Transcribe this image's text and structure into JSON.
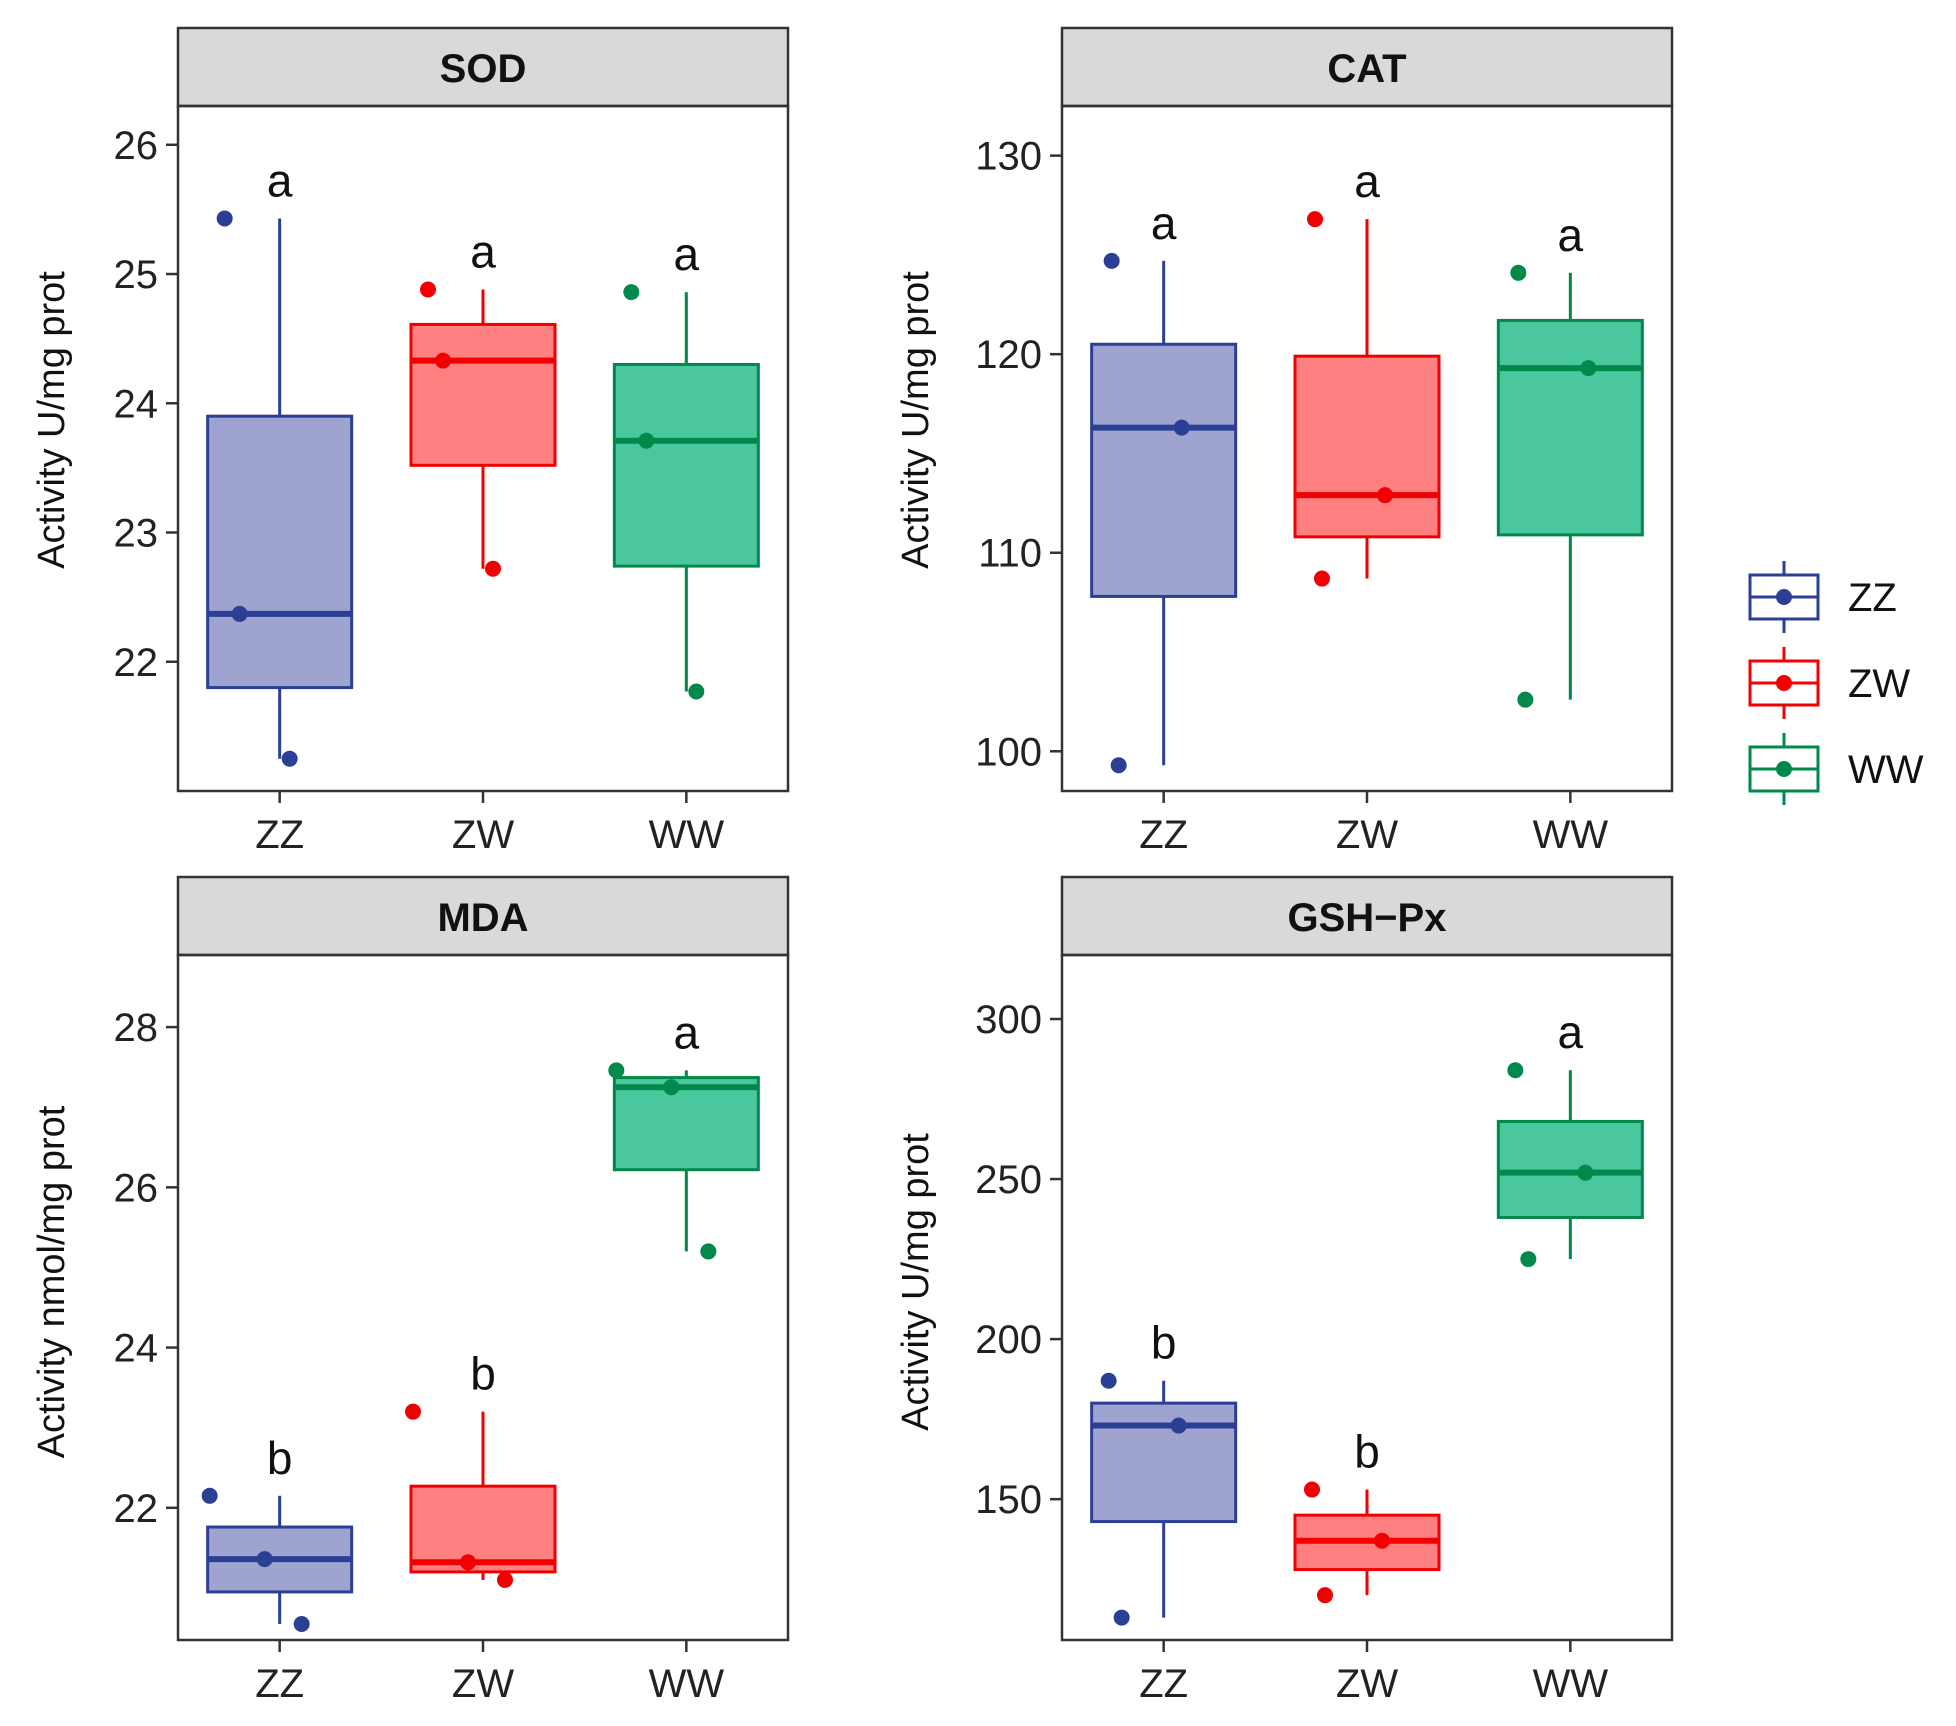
{
  "groups": [
    {
      "name": "ZZ",
      "line_color": "#2b3f94",
      "fill_color": "#9fa3cf",
      "point_color": "#2b3f94"
    },
    {
      "name": "ZW",
      "line_color": "#f00000",
      "fill_color": "#ff8080",
      "point_color": "#f00000"
    },
    {
      "name": "WW",
      "line_color": "#00894a",
      "fill_color": "#4bc7a0",
      "point_color": "#00894a"
    }
  ],
  "legend": {
    "position": "right",
    "entries": [
      "ZZ",
      "ZW",
      "WW"
    ]
  },
  "chart_data": [
    {
      "type": "boxplot",
      "title": "SOD",
      "ylabel": "Activity U/mg prot",
      "categories": [
        "ZZ",
        "ZW",
        "WW"
      ],
      "ylim": [
        21.0,
        26.3
      ],
      "yticks": [
        22,
        23,
        24,
        25,
        26
      ],
      "boxes": [
        {
          "group": "ZZ",
          "q1": 21.8,
          "median": 22.37,
          "q3": 23.9,
          "whisker_low": 21.25,
          "whisker_high": 25.43,
          "letter": "a",
          "points": [
            25.43,
            22.37,
            21.25
          ]
        },
        {
          "group": "ZW",
          "q1": 23.52,
          "median": 24.33,
          "q3": 24.61,
          "whisker_low": 22.72,
          "whisker_high": 24.88,
          "letter": "a",
          "points": [
            24.88,
            24.33,
            22.72
          ]
        },
        {
          "group": "WW",
          "q1": 22.74,
          "median": 23.71,
          "q3": 24.3,
          "whisker_low": 21.77,
          "whisker_high": 24.86,
          "letter": "a",
          "points": [
            24.86,
            23.71,
            21.77
          ]
        }
      ]
    },
    {
      "type": "boxplot",
      "title": "CAT",
      "ylabel": "Activity U/mg prot",
      "categories": [
        "ZZ",
        "ZW",
        "WW"
      ],
      "ylim": [
        98.0,
        132.5
      ],
      "yticks": [
        100,
        110,
        120,
        130
      ],
      "boxes": [
        {
          "group": "ZZ",
          "q1": 107.8,
          "median": 116.3,
          "q3": 120.5,
          "whisker_low": 99.3,
          "whisker_high": 124.7,
          "letter": "a",
          "points": [
            124.7,
            116.3,
            99.3
          ]
        },
        {
          "group": "ZW",
          "q1": 110.8,
          "median": 112.9,
          "q3": 119.9,
          "whisker_low": 108.7,
          "whisker_high": 126.8,
          "letter": "a",
          "points": [
            126.8,
            112.9,
            108.7
          ]
        },
        {
          "group": "WW",
          "q1": 110.9,
          "median": 119.3,
          "q3": 121.7,
          "whisker_low": 102.6,
          "whisker_high": 124.1,
          "letter": "a",
          "points": [
            124.1,
            119.3,
            102.6
          ]
        }
      ]
    },
    {
      "type": "boxplot",
      "title": "MDA",
      "ylabel": "Activity nmol/mg prot",
      "categories": [
        "ZZ",
        "ZW",
        "WW"
      ],
      "ylim": [
        20.35,
        28.9
      ],
      "yticks": [
        22,
        24,
        26,
        28
      ],
      "boxes": [
        {
          "group": "ZZ",
          "q1": 20.95,
          "median": 21.36,
          "q3": 21.76,
          "whisker_low": 20.55,
          "whisker_high": 22.15,
          "letter": "b",
          "points": [
            22.15,
            21.36,
            20.55
          ]
        },
        {
          "group": "ZW",
          "q1": 21.2,
          "median": 21.32,
          "q3": 22.27,
          "whisker_low": 21.1,
          "whisker_high": 23.2,
          "letter": "b",
          "points": [
            23.2,
            21.32,
            21.1
          ]
        },
        {
          "group": "WW",
          "q1": 26.22,
          "median": 27.25,
          "q3": 27.37,
          "whisker_low": 25.2,
          "whisker_high": 27.46,
          "letter": "a",
          "points": [
            27.46,
            27.25,
            25.2
          ]
        }
      ]
    },
    {
      "type": "boxplot",
      "title": "GSH−Px",
      "ylabel": "Activity U/mg prot",
      "categories": [
        "ZZ",
        "ZW",
        "WW"
      ],
      "ylim": [
        106,
        320
      ],
      "yticks": [
        150,
        200,
        250,
        300
      ],
      "boxes": [
        {
          "group": "ZZ",
          "q1": 143,
          "median": 173,
          "q3": 180,
          "whisker_low": 113,
          "whisker_high": 187,
          "letter": "b",
          "points": [
            187,
            173,
            113
          ]
        },
        {
          "group": "ZW",
          "q1": 128,
          "median": 137,
          "q3": 145,
          "whisker_low": 120,
          "whisker_high": 153,
          "letter": "b",
          "points": [
            153,
            137,
            120
          ]
        },
        {
          "group": "WW",
          "q1": 238,
          "median": 252,
          "q3": 268,
          "whisker_low": 225,
          "whisker_high": 284,
          "letter": "a",
          "points": [
            284,
            252,
            225
          ]
        }
      ]
    }
  ]
}
